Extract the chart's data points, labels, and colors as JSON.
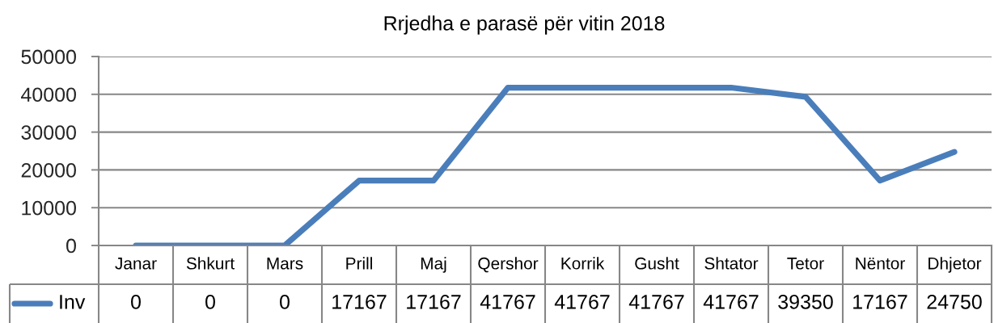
{
  "chart_data": {
    "type": "line",
    "title": "Rrjedha e parasë për vitin 2018",
    "categories": [
      "Janar",
      "Shkurt",
      "Mars",
      "Prill",
      "Maj",
      "Qershor",
      "Korrik",
      "Gusht",
      "Shtator",
      "Tetor",
      "Nëntor",
      "Dhjetor"
    ],
    "series": [
      {
        "name": "Inv",
        "color": "#4a7ebb",
        "values": [
          0,
          0,
          0,
          17167,
          17167,
          41767,
          41767,
          41767,
          41767,
          39350,
          17167,
          24750
        ]
      }
    ],
    "ylim": [
      0,
      50000
    ],
    "yticks": [
      0,
      10000,
      20000,
      30000,
      40000,
      50000
    ],
    "grid": "y",
    "legend": "bottom left",
    "data_labels": true,
    "marker": "none",
    "line_style": "solid"
  }
}
